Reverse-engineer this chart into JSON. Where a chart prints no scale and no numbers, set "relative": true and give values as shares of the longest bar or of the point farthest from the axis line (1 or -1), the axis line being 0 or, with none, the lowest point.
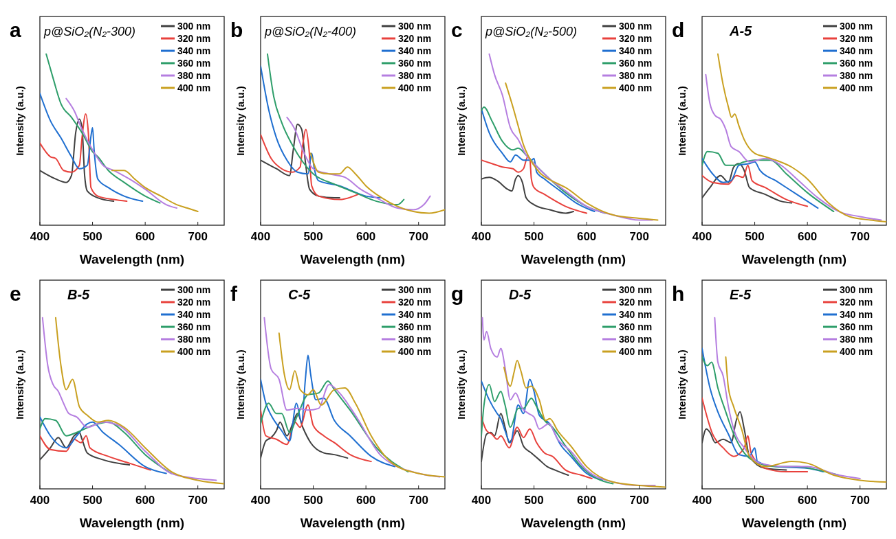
{
  "chart_data": [
    {
      "type": "line",
      "title": "a",
      "annotations": [
        "p@SiO₂(N₂-300)"
      ],
      "xlabel": "Wavelength (nm)",
      "ylabel": "Intensity (a.u.)",
      "xlim": [
        400,
        750
      ],
      "xticks": [
        400,
        500,
        600,
        700
      ],
      "relative": true,
      "legend": "top right",
      "series": [
        {
          "name": "300 nm",
          "color": "#404040",
          "x": [
            400,
            430,
            450,
            460,
            468,
            475,
            480,
            485,
            490,
            510,
            540
          ],
          "values": [
            0.32,
            0.27,
            0.25,
            0.29,
            0.54,
            0.62,
            0.57,
            0.29,
            0.2,
            0.16,
            0.14
          ]
        },
        {
          "name": "320 nm",
          "color": "#e8413c",
          "x": [
            400,
            420,
            430,
            445,
            460,
            475,
            480,
            487,
            492,
            497,
            510,
            540,
            565
          ],
          "values": [
            0.48,
            0.4,
            0.39,
            0.32,
            0.31,
            0.35,
            0.51,
            0.65,
            0.54,
            0.22,
            0.17,
            0.15,
            0.14
          ]
        },
        {
          "name": "340 nm",
          "color": "#1f6fd0",
          "x": [
            400,
            420,
            440,
            460,
            475,
            490,
            497,
            500,
            503,
            510,
            530,
            560,
            595
          ],
          "values": [
            0.77,
            0.61,
            0.51,
            0.4,
            0.33,
            0.35,
            0.52,
            0.57,
            0.44,
            0.27,
            0.22,
            0.17,
            0.14
          ]
        },
        {
          "name": "360 nm",
          "color": "#2e9e6a",
          "x": [
            412,
            425,
            440,
            460,
            480,
            500,
            510,
            530,
            560,
            600,
            628
          ],
          "values": [
            1.0,
            0.86,
            0.71,
            0.63,
            0.54,
            0.43,
            0.4,
            0.32,
            0.25,
            0.17,
            0.13
          ]
        },
        {
          "name": "380 nm",
          "color": "#b57ee0",
          "x": [
            450,
            465,
            480,
            500,
            520,
            540,
            570,
            600,
            640,
            660
          ],
          "values": [
            0.74,
            0.67,
            0.56,
            0.44,
            0.35,
            0.32,
            0.27,
            0.21,
            0.12,
            0.1
          ]
        },
        {
          "name": "400 nm",
          "color": "#c9a020",
          "x": [
            537,
            550,
            560,
            580,
            600,
            630,
            660,
            680,
            700
          ],
          "values": [
            0.32,
            0.32,
            0.32,
            0.27,
            0.22,
            0.17,
            0.12,
            0.1,
            0.08
          ]
        }
      ]
    },
    {
      "type": "line",
      "title": "b",
      "annotations": [
        "p@SiO₂(N₂-400)"
      ],
      "xlabel": "Wavelength (nm)",
      "ylabel": "Intensity (a.u.)",
      "xlim": [
        400,
        750
      ],
      "xticks": [
        400,
        500,
        600,
        700
      ],
      "relative": true,
      "legend": "top right",
      "series": [
        {
          "name": "300 nm",
          "color": "#404040",
          "x": [
            400,
            430,
            455,
            462,
            470,
            478,
            485,
            493,
            510,
            540,
            550
          ],
          "values": [
            0.38,
            0.33,
            0.29,
            0.44,
            0.59,
            0.56,
            0.37,
            0.21,
            0.17,
            0.16,
            0.16
          ]
        },
        {
          "name": "320 nm",
          "color": "#e8413c",
          "x": [
            400,
            420,
            440,
            460,
            475,
            480,
            486,
            492,
            497,
            510,
            550,
            585
          ],
          "values": [
            0.53,
            0.39,
            0.33,
            0.31,
            0.34,
            0.47,
            0.56,
            0.44,
            0.23,
            0.17,
            0.15,
            0.18
          ]
        },
        {
          "name": "340 nm",
          "color": "#1f6fd0",
          "x": [
            400,
            415,
            430,
            450,
            470,
            490,
            497,
            502,
            510,
            550,
            600,
            630
          ],
          "values": [
            0.93,
            0.68,
            0.51,
            0.38,
            0.31,
            0.3,
            0.42,
            0.33,
            0.26,
            0.23,
            0.17,
            0.16
          ]
        },
        {
          "name": "360 nm",
          "color": "#2e9e6a",
          "x": [
            413,
            425,
            440,
            460,
            480,
            500,
            540,
            580,
            620,
            660,
            672
          ],
          "values": [
            1.0,
            0.75,
            0.6,
            0.47,
            0.37,
            0.3,
            0.24,
            0.19,
            0.14,
            0.12,
            0.15
          ]
        },
        {
          "name": "380 nm",
          "color": "#b57ee0",
          "x": [
            450,
            465,
            480,
            500,
            530,
            560,
            590,
            620,
            660,
            690,
            710,
            722
          ],
          "values": [
            0.63,
            0.56,
            0.44,
            0.33,
            0.3,
            0.28,
            0.21,
            0.16,
            0.1,
            0.09,
            0.12,
            0.17
          ]
        },
        {
          "name": "400 nm",
          "color": "#c9a020",
          "x": [
            495,
            510,
            530,
            550,
            565,
            580,
            600,
            630,
            660,
            690,
            720,
            750
          ],
          "values": [
            0.42,
            0.31,
            0.3,
            0.3,
            0.34,
            0.3,
            0.23,
            0.16,
            0.11,
            0.08,
            0.07,
            0.09
          ]
        }
      ]
    },
    {
      "type": "line",
      "title": "c",
      "annotations": [
        "p@SiO₂(N₂-500)"
      ],
      "xlabel": "Wavelength (nm)",
      "ylabel": "Intensity (a.u.)",
      "xlim": [
        400,
        750
      ],
      "xticks": [
        400,
        500,
        600,
        700
      ],
      "relative": true,
      "legend": "top right",
      "series": [
        {
          "name": "300 nm",
          "color": "#404040",
          "x": [
            400,
            415,
            430,
            450,
            458,
            465,
            470,
            478,
            485,
            500,
            530,
            560,
            575
          ],
          "values": [
            0.27,
            0.28,
            0.26,
            0.21,
            0.2,
            0.27,
            0.29,
            0.25,
            0.16,
            0.12,
            0.09,
            0.07,
            0.08
          ]
        },
        {
          "name": "320 nm",
          "color": "#e8413c",
          "x": [
            400,
            420,
            440,
            460,
            470,
            480,
            488,
            492,
            495,
            500,
            520,
            560,
            600
          ],
          "values": [
            0.38,
            0.36,
            0.34,
            0.33,
            0.31,
            0.33,
            0.4,
            0.39,
            0.27,
            0.22,
            0.18,
            0.11,
            0.07
          ]
        },
        {
          "name": "340 nm",
          "color": "#1f6fd0",
          "x": [
            400,
            415,
            440,
            455,
            465,
            480,
            495,
            500,
            505,
            520,
            550,
            580,
            615
          ],
          "values": [
            0.68,
            0.54,
            0.42,
            0.37,
            0.41,
            0.38,
            0.38,
            0.39,
            0.31,
            0.27,
            0.2,
            0.13,
            0.08
          ]
        },
        {
          "name": "360 nm",
          "color": "#2e9e6a",
          "x": [
            400,
            405,
            420,
            440,
            460,
            470,
            485,
            500,
            530,
            560,
            600,
            635
          ],
          "values": [
            0.67,
            0.69,
            0.61,
            0.49,
            0.44,
            0.45,
            0.41,
            0.36,
            0.27,
            0.19,
            0.11,
            0.07
          ]
        },
        {
          "name": "380 nm",
          "color": "#b57ee0",
          "x": [
            415,
            425,
            440,
            455,
            470,
            485,
            500,
            530,
            560,
            600,
            650,
            700,
            725
          ],
          "values": [
            1.0,
            0.88,
            0.76,
            0.57,
            0.5,
            0.41,
            0.36,
            0.27,
            0.2,
            0.11,
            0.06,
            0.03,
            0.03
          ]
        },
        {
          "name": "400 nm",
          "color": "#c9a020",
          "x": [
            446,
            460,
            470,
            480,
            490,
            510,
            540,
            560,
            600,
            650,
            700,
            735
          ],
          "values": [
            0.83,
            0.69,
            0.58,
            0.47,
            0.4,
            0.31,
            0.25,
            0.22,
            0.13,
            0.06,
            0.04,
            0.03
          ]
        }
      ]
    },
    {
      "type": "line",
      "title": "d",
      "annotations": [
        "A-5"
      ],
      "xlabel": "Wavelength (nm)",
      "ylabel": "Intensity (a.u.)",
      "xlim": [
        400,
        750
      ],
      "xticks": [
        400,
        500,
        600,
        700
      ],
      "relative": true,
      "legend": "top right",
      "series": [
        {
          "name": "300 nm",
          "color": "#404040",
          "x": [
            400,
            415,
            435,
            450,
            460,
            470,
            480,
            490,
            520,
            550,
            570
          ],
          "values": [
            0.16,
            0.22,
            0.29,
            0.25,
            0.34,
            0.36,
            0.32,
            0.22,
            0.18,
            0.14,
            0.13
          ]
        },
        {
          "name": "320 nm",
          "color": "#e8413c",
          "x": [
            400,
            420,
            450,
            465,
            478,
            487,
            495,
            520,
            560,
            600
          ],
          "values": [
            0.29,
            0.25,
            0.24,
            0.29,
            0.28,
            0.35,
            0.26,
            0.22,
            0.15,
            0.11
          ]
        },
        {
          "name": "340 nm",
          "color": "#1f6fd0",
          "x": [
            400,
            420,
            440,
            455,
            470,
            490,
            500,
            510,
            540,
            580,
            620
          ],
          "values": [
            0.39,
            0.3,
            0.25,
            0.26,
            0.35,
            0.36,
            0.37,
            0.32,
            0.26,
            0.18,
            0.1
          ]
        },
        {
          "name": "360 nm",
          "color": "#2e9e6a",
          "x": [
            400,
            410,
            430,
            445,
            460,
            480,
            500,
            530,
            560,
            600,
            650
          ],
          "values": [
            0.35,
            0.43,
            0.42,
            0.35,
            0.35,
            0.37,
            0.38,
            0.38,
            0.3,
            0.19,
            0.08
          ]
        },
        {
          "name": "380 nm",
          "color": "#b57ee0",
          "x": [
            407,
            415,
            425,
            435,
            445,
            455,
            470,
            490,
            520,
            550,
            580,
            620,
            660,
            700,
            740
          ],
          "values": [
            0.88,
            0.71,
            0.64,
            0.62,
            0.56,
            0.46,
            0.43,
            0.37,
            0.39,
            0.35,
            0.27,
            0.16,
            0.08,
            0.05,
            0.03
          ]
        },
        {
          "name": "400 nm",
          "color": "#c9a020",
          "x": [
            430,
            440,
            450,
            456,
            462,
            470,
            480,
            500,
            520,
            540,
            570,
            600,
            640,
            680,
            720,
            750
          ],
          "values": [
            1.0,
            0.82,
            0.69,
            0.63,
            0.65,
            0.58,
            0.5,
            0.42,
            0.4,
            0.38,
            0.34,
            0.27,
            0.13,
            0.05,
            0.03,
            0.02
          ]
        }
      ]
    },
    {
      "type": "line",
      "title": "e",
      "annotations": [
        "B-5"
      ],
      "xlabel": "Wavelength (nm)",
      "ylabel": "Intensity (a.u.)",
      "xlim": [
        400,
        750
      ],
      "xticks": [
        400,
        500,
        600,
        700
      ],
      "relative": true,
      "legend": "top right",
      "series": [
        {
          "name": "300 nm",
          "color": "#404040",
          "x": [
            400,
            420,
            435,
            450,
            465,
            475,
            480,
            490,
            520,
            570
          ],
          "values": [
            0.17,
            0.24,
            0.3,
            0.24,
            0.31,
            0.33,
            0.29,
            0.21,
            0.17,
            0.14
          ]
        },
        {
          "name": "320 nm",
          "color": "#e8413c",
          "x": [
            400,
            420,
            450,
            465,
            478,
            488,
            495,
            530,
            570,
            610
          ],
          "values": [
            0.31,
            0.23,
            0.22,
            0.29,
            0.27,
            0.31,
            0.24,
            0.19,
            0.15,
            0.11
          ]
        },
        {
          "name": "340 nm",
          "color": "#1f6fd0",
          "x": [
            400,
            420,
            450,
            470,
            490,
            500,
            520,
            550,
            600,
            640
          ],
          "values": [
            0.42,
            0.31,
            0.24,
            0.31,
            0.38,
            0.39,
            0.33,
            0.26,
            0.13,
            0.09
          ]
        },
        {
          "name": "360 nm",
          "color": "#2e9e6a",
          "x": [
            400,
            410,
            430,
            450,
            470,
            500,
            530,
            560,
            600,
            650
          ],
          "values": [
            0.35,
            0.41,
            0.4,
            0.31,
            0.33,
            0.37,
            0.39,
            0.33,
            0.2,
            0.09
          ]
        },
        {
          "name": "380 nm",
          "color": "#b57ee0",
          "x": [
            405,
            415,
            425,
            435,
            445,
            455,
            470,
            490,
            520,
            550,
            600,
            650,
            700,
            735
          ],
          "values": [
            1.0,
            0.72,
            0.61,
            0.57,
            0.5,
            0.44,
            0.42,
            0.36,
            0.39,
            0.37,
            0.22,
            0.09,
            0.06,
            0.05
          ]
        },
        {
          "name": "400 nm",
          "color": "#c9a020",
          "x": [
            430,
            440,
            450,
            462,
            475,
            490,
            510,
            530,
            560,
            600,
            650,
            700,
            750
          ],
          "values": [
            1.0,
            0.72,
            0.58,
            0.64,
            0.48,
            0.43,
            0.39,
            0.4,
            0.36,
            0.24,
            0.1,
            0.05,
            0.03
          ]
        }
      ]
    },
    {
      "type": "line",
      "title": "f",
      "annotations": [
        "C-5"
      ],
      "xlabel": "Wavelength (nm)",
      "ylabel": "Intensity (a.u.)",
      "xlim": [
        400,
        750
      ],
      "xticks": [
        400,
        500,
        600,
        700
      ],
      "relative": true,
      "legend": "top right",
      "series": [
        {
          "name": "300 nm",
          "color": "#404040",
          "x": [
            400,
            410,
            420,
            430,
            437,
            450,
            462,
            470,
            480,
            495,
            520,
            540,
            565
          ],
          "values": [
            0.18,
            0.28,
            0.3,
            0.34,
            0.39,
            0.31,
            0.39,
            0.44,
            0.36,
            0.27,
            0.21,
            0.2,
            0.18
          ]
        },
        {
          "name": "320 nm",
          "color": "#e8413c",
          "x": [
            400,
            410,
            430,
            450,
            465,
            475,
            490,
            500,
            520,
            540,
            570,
            610
          ],
          "values": [
            0.46,
            0.31,
            0.29,
            0.26,
            0.39,
            0.36,
            0.49,
            0.37,
            0.31,
            0.27,
            0.2,
            0.16
          ]
        },
        {
          "name": "340 nm",
          "color": "#1f6fd0",
          "x": [
            400,
            410,
            420,
            440,
            455,
            468,
            478,
            485,
            490,
            495,
            505,
            520,
            540,
            570,
            610,
            655
          ],
          "values": [
            0.64,
            0.5,
            0.43,
            0.34,
            0.28,
            0.5,
            0.39,
            0.64,
            0.78,
            0.67,
            0.52,
            0.53,
            0.4,
            0.31,
            0.19,
            0.13
          ]
        },
        {
          "name": "360 nm",
          "color": "#2e9e6a",
          "x": [
            400,
            415,
            430,
            440,
            455,
            470,
            490,
            510,
            528,
            540,
            570,
            620,
            680
          ],
          "values": [
            0.38,
            0.5,
            0.44,
            0.44,
            0.33,
            0.43,
            0.55,
            0.56,
            0.63,
            0.58,
            0.46,
            0.24,
            0.1
          ]
        },
        {
          "name": "380 nm",
          "color": "#b57ee0",
          "x": [
            407,
            420,
            435,
            450,
            470,
            490,
            510,
            530,
            550,
            580,
            630,
            700,
            740
          ],
          "values": [
            1.0,
            0.7,
            0.64,
            0.46,
            0.47,
            0.46,
            0.47,
            0.61,
            0.56,
            0.43,
            0.19,
            0.09,
            0.07
          ]
        },
        {
          "name": "400 nm",
          "color": "#c9a020",
          "x": [
            435,
            445,
            455,
            465,
            475,
            490,
            500,
            515,
            540,
            560,
            580,
            610,
            650,
            700,
            750
          ],
          "values": [
            0.91,
            0.67,
            0.58,
            0.69,
            0.58,
            0.55,
            0.58,
            0.49,
            0.58,
            0.59,
            0.5,
            0.31,
            0.15,
            0.09,
            0.07
          ]
        }
      ]
    },
    {
      "type": "line",
      "title": "g",
      "annotations": [
        "D-5"
      ],
      "xlabel": "Wavelength (nm)",
      "ylabel": "Intensity (a.u.)",
      "xlim": [
        400,
        750
      ],
      "xticks": [
        400,
        500,
        600,
        700
      ],
      "relative": true,
      "legend": "top right",
      "series": [
        {
          "name": "300 nm",
          "color": "#404040",
          "x": [
            400,
            410,
            418,
            425,
            437,
            445,
            453,
            460,
            468,
            480,
            495,
            510,
            525,
            540,
            565
          ],
          "values": [
            0.16,
            0.32,
            0.33,
            0.31,
            0.44,
            0.36,
            0.27,
            0.3,
            0.34,
            0.25,
            0.21,
            0.17,
            0.13,
            0.11,
            0.08
          ]
        },
        {
          "name": "320 nm",
          "color": "#e8413c",
          "x": [
            400,
            410,
            420,
            430,
            437,
            453,
            468,
            480,
            492,
            505,
            520,
            535,
            560,
            590,
            610
          ],
          "values": [
            0.42,
            0.34,
            0.32,
            0.29,
            0.31,
            0.24,
            0.36,
            0.3,
            0.35,
            0.27,
            0.21,
            0.19,
            0.11,
            0.08,
            0.06
          ]
        },
        {
          "name": "340 nm",
          "color": "#1f6fd0",
          "x": [
            400,
            415,
            430,
            437,
            445,
            455,
            470,
            480,
            492,
            500,
            510,
            530,
            550,
            570,
            600,
            630
          ],
          "values": [
            0.63,
            0.52,
            0.44,
            0.41,
            0.34,
            0.27,
            0.49,
            0.44,
            0.64,
            0.57,
            0.43,
            0.38,
            0.26,
            0.19,
            0.09,
            0.05
          ]
        },
        {
          "name": "360 nm",
          "color": "#2e9e6a",
          "x": [
            400,
            405,
            415,
            425,
            437,
            445,
            455,
            470,
            480,
            495,
            505,
            520,
            535,
            560,
            590,
            620,
            650
          ],
          "values": [
            0.31,
            0.49,
            0.61,
            0.51,
            0.57,
            0.49,
            0.36,
            0.47,
            0.47,
            0.53,
            0.48,
            0.4,
            0.36,
            0.25,
            0.13,
            0.06,
            0.03
          ]
        },
        {
          "name": "380 nm",
          "color": "#b57ee0",
          "x": [
            402,
            405,
            410,
            418,
            430,
            437,
            445,
            455,
            465,
            478,
            490,
            500,
            510,
            528,
            545,
            570,
            600,
            650,
            700,
            730
          ],
          "values": [
            1.0,
            0.87,
            0.92,
            0.82,
            0.77,
            0.82,
            0.71,
            0.52,
            0.56,
            0.47,
            0.44,
            0.42,
            0.35,
            0.38,
            0.29,
            0.22,
            0.11,
            0.04,
            0.02,
            0.02
          ]
        },
        {
          "name": "400 nm",
          "color": "#c9a020",
          "x": [
            443,
            455,
            462,
            468,
            475,
            485,
            495,
            510,
            522,
            530,
            545,
            570,
            600,
            650,
            700,
            750
          ],
          "values": [
            0.71,
            0.6,
            0.68,
            0.75,
            0.69,
            0.59,
            0.6,
            0.52,
            0.4,
            0.41,
            0.34,
            0.25,
            0.13,
            0.04,
            0.02,
            0.01
          ]
        }
      ]
    },
    {
      "type": "line",
      "title": "h",
      "annotations": [
        "E-5"
      ],
      "xlabel": "Wavelength (nm)",
      "ylabel": "Intensity (a.u.)",
      "xlim": [
        400,
        750
      ],
      "xticks": [
        400,
        500,
        600,
        700
      ],
      "relative": true,
      "legend": "top right",
      "series": [
        {
          "name": "300 nm",
          "color": "#404040",
          "x": [
            400,
            408,
            415,
            425,
            440,
            455,
            465,
            472,
            480,
            490,
            520,
            560
          ],
          "values": [
            0.27,
            0.35,
            0.33,
            0.27,
            0.29,
            0.27,
            0.4,
            0.45,
            0.35,
            0.19,
            0.12,
            0.11
          ]
        },
        {
          "name": "320 nm",
          "color": "#e8413c",
          "x": [
            400,
            420,
            440,
            460,
            480,
            487,
            493,
            520,
            560,
            600
          ],
          "values": [
            0.53,
            0.32,
            0.24,
            0.19,
            0.24,
            0.31,
            0.21,
            0.12,
            0.1,
            0.1
          ]
        },
        {
          "name": "340 nm",
          "color": "#1f6fd0",
          "x": [
            400,
            415,
            430,
            450,
            470,
            490,
            500,
            505,
            540,
            600,
            630
          ],
          "values": [
            0.82,
            0.59,
            0.45,
            0.32,
            0.2,
            0.19,
            0.24,
            0.16,
            0.13,
            0.12,
            0.1
          ]
        },
        {
          "name": "360 nm",
          "color": "#2e9e6a",
          "x": [
            400,
            410,
            418,
            430,
            445,
            460,
            480,
            500,
            540,
            580,
            620,
            660
          ],
          "values": [
            0.77,
            0.72,
            0.74,
            0.59,
            0.45,
            0.32,
            0.21,
            0.16,
            0.13,
            0.13,
            0.11,
            0.08
          ]
        },
        {
          "name": "380 nm",
          "color": "#b57ee0",
          "x": [
            424,
            430,
            440,
            450,
            460,
            480,
            510,
            560,
            600,
            660,
            700
          ],
          "values": [
            1.0,
            0.74,
            0.66,
            0.48,
            0.35,
            0.24,
            0.15,
            0.13,
            0.13,
            0.08,
            0.06
          ]
        },
        {
          "name": "400 nm",
          "color": "#c9a020",
          "x": [
            445,
            450,
            460,
            475,
            490,
            520,
            570,
            600,
            650,
            700,
            750
          ],
          "values": [
            0.77,
            0.59,
            0.48,
            0.35,
            0.19,
            0.13,
            0.16,
            0.15,
            0.08,
            0.05,
            0.04
          ]
        }
      ]
    }
  ]
}
